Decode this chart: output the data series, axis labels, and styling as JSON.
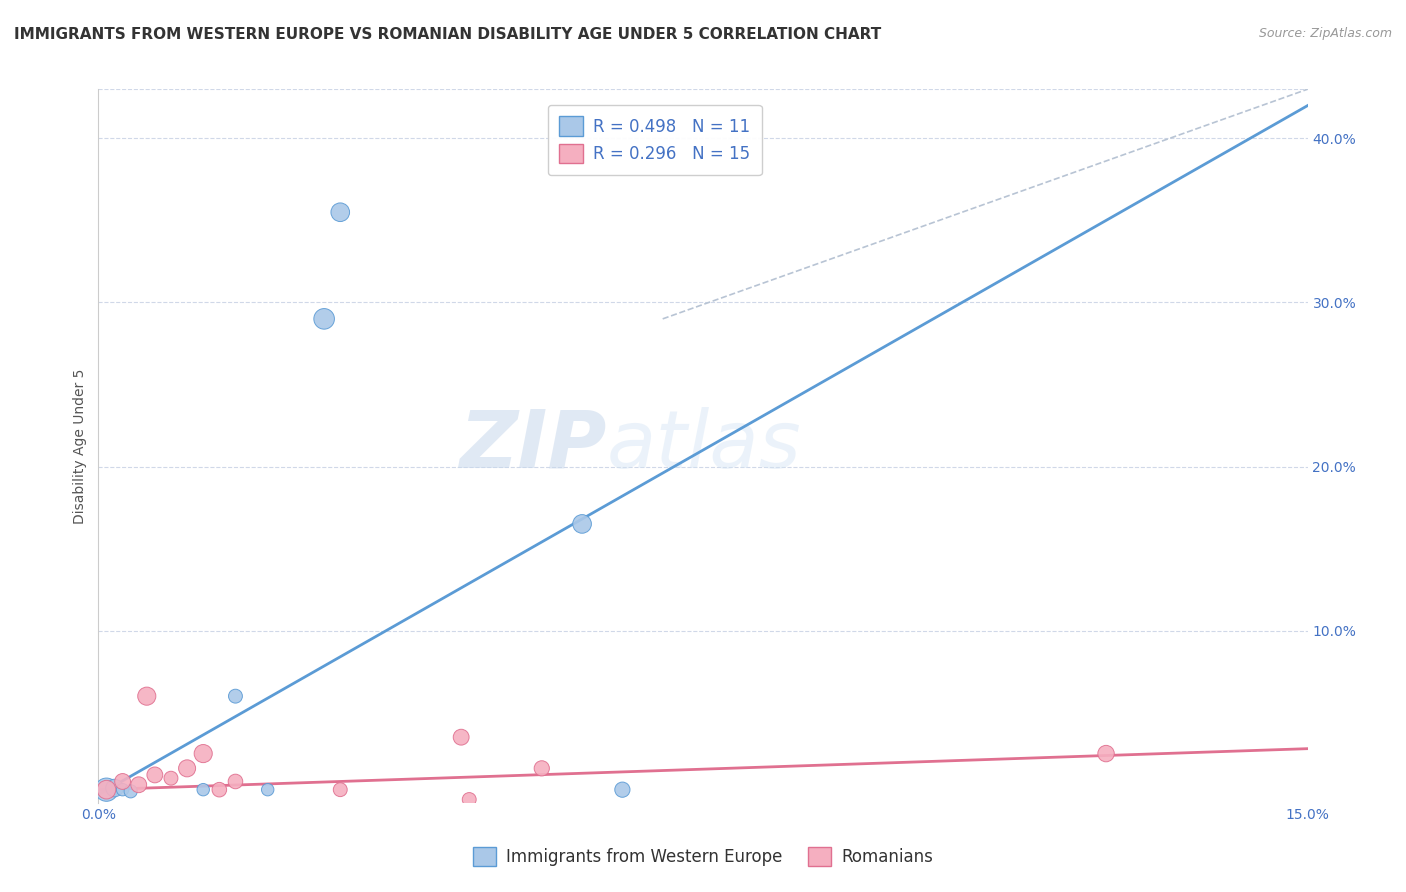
{
  "title": "IMMIGRANTS FROM WESTERN EUROPE VS ROMANIAN DISABILITY AGE UNDER 5 CORRELATION CHART",
  "source": "Source: ZipAtlas.com",
  "ylabel": "Disability Age Under 5",
  "xlim": [
    0.0,
    0.15
  ],
  "ylim": [
    -0.005,
    0.43
  ],
  "xticks": [
    0.0,
    0.05,
    0.1,
    0.15
  ],
  "xtick_labels": [
    "0.0%",
    "",
    "",
    "15.0%"
  ],
  "yticks_right": [
    0.1,
    0.2,
    0.3,
    0.4
  ],
  "ytick_labels_right": [
    "10.0%",
    "20.0%",
    "30.0%",
    "40.0%"
  ],
  "blue_points_x": [
    0.001,
    0.002,
    0.003,
    0.004,
    0.013,
    0.017,
    0.021,
    0.03,
    0.06,
    0.028,
    0.065
  ],
  "blue_points_y": [
    0.003,
    0.004,
    0.003,
    0.002,
    0.003,
    0.06,
    0.003,
    0.355,
    0.165,
    0.29,
    0.003
  ],
  "blue_sizes": [
    280,
    160,
    80,
    90,
    80,
    100,
    80,
    180,
    180,
    220,
    120
  ],
  "pink_points_x": [
    0.001,
    0.003,
    0.005,
    0.006,
    0.007,
    0.009,
    0.011,
    0.013,
    0.015,
    0.017,
    0.03,
    0.045,
    0.046,
    0.055,
    0.125
  ],
  "pink_points_y": [
    0.003,
    0.008,
    0.006,
    0.06,
    0.012,
    0.01,
    0.016,
    0.025,
    0.003,
    0.008,
    0.003,
    0.035,
    -0.003,
    0.016,
    0.025
  ],
  "pink_sizes": [
    180,
    130,
    130,
    170,
    130,
    100,
    150,
    170,
    110,
    110,
    100,
    130,
    100,
    120,
    140
  ],
  "blue_line_x": [
    0.0,
    0.15
  ],
  "blue_line_y": [
    0.0,
    0.42
  ],
  "pink_line_x": [
    0.0,
    0.15
  ],
  "pink_line_y": [
    0.003,
    0.028
  ],
  "diag_line_x": [
    0.07,
    0.15
  ],
  "diag_line_y": [
    0.29,
    0.43
  ],
  "blue_color": "#aac8e8",
  "blue_line_color": "#5b9bd5",
  "pink_color": "#f5afc0",
  "pink_line_color": "#e07090",
  "diag_color": "#b8c4d4",
  "legend_blue_label": "R = 0.498   N = 11",
  "legend_pink_label": "R = 0.296   N = 15",
  "bottom_legend_blue": "Immigrants from Western Europe",
  "bottom_legend_pink": "Romanians",
  "title_fontsize": 11,
  "axis_label_fontsize": 10,
  "tick_fontsize": 10,
  "source_fontsize": 9,
  "legend_fontsize": 12
}
